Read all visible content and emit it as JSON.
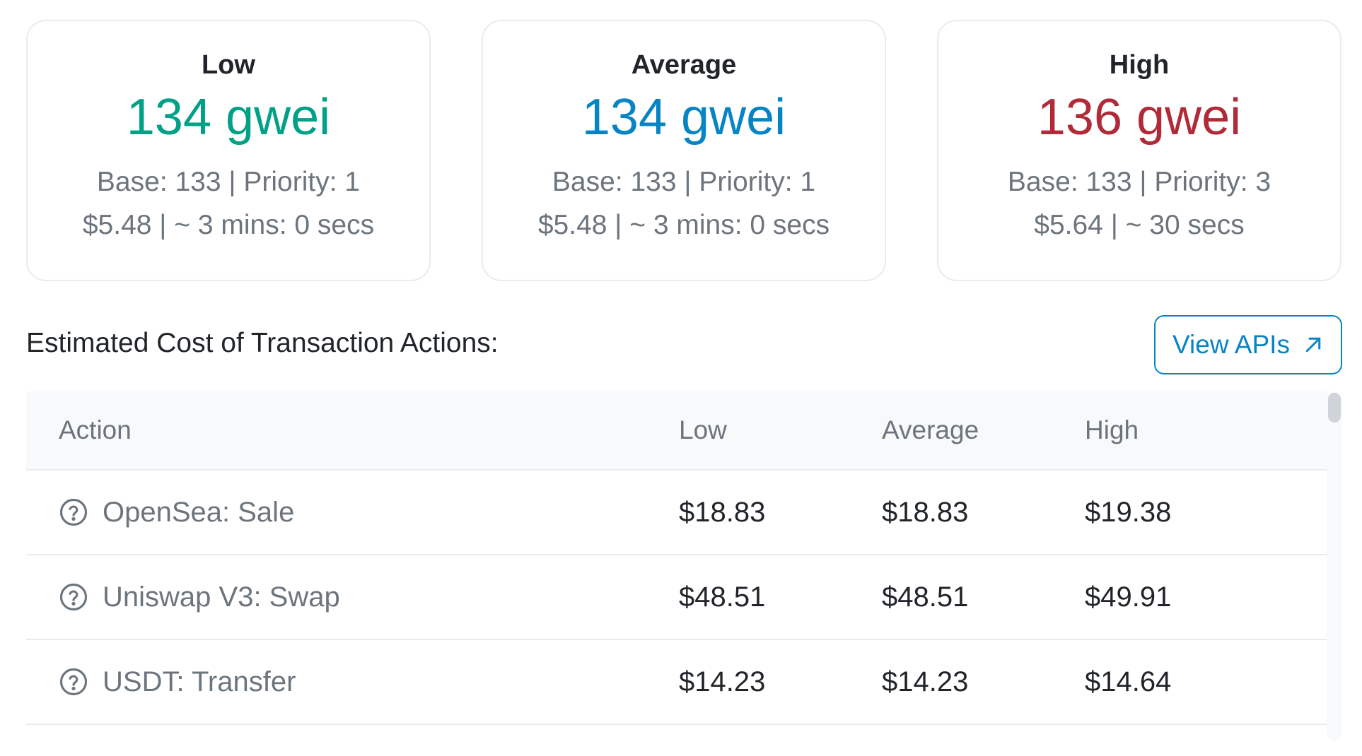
{
  "cards": [
    {
      "title": "Low",
      "gwei": "134 gwei",
      "color": "#00a186",
      "detail": "Base: 133 | Priority: 1",
      "cost": "$5.48 | ~ 3 mins: 0 secs"
    },
    {
      "title": "Average",
      "gwei": "134 gwei",
      "color": "#0784c3",
      "detail": "Base: 133 | Priority: 1",
      "cost": "$5.48 | ~ 3 mins: 0 secs"
    },
    {
      "title": "High",
      "gwei": "136 gwei",
      "color": "#b02a37",
      "detail": "Base: 133 | Priority: 3",
      "cost": "$5.64 | ~ 30 secs"
    }
  ],
  "section": {
    "title": "Estimated Cost of Transaction Actions:",
    "view_api_label": "View APIs",
    "view_api_icon": "arrow-up-right-icon"
  },
  "table": {
    "headers": {
      "action": "Action",
      "low": "Low",
      "average": "Average",
      "high": "High"
    },
    "rows": [
      {
        "action": "OpenSea: Sale",
        "low": "$18.83",
        "average": "$18.83",
        "high": "$19.38"
      },
      {
        "action": "Uniswap V3: Swap",
        "low": "$48.51",
        "average": "$48.51",
        "high": "$49.91"
      },
      {
        "action": "USDT: Transfer",
        "low": "$14.23",
        "average": "$14.23",
        "high": "$14.64"
      }
    ]
  },
  "colors": {
    "accent": "#0784c3",
    "muted": "#6c757d",
    "border": "#e9ecef"
  }
}
